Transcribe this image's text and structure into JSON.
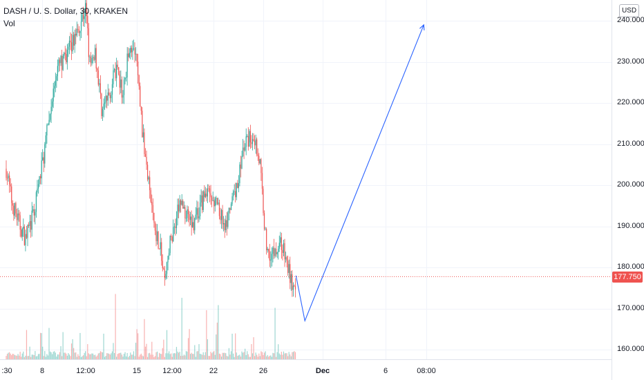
{
  "header": {
    "title": "DASH / U. S. Dollar, 30, KRAKEN",
    "volume_label": "Vol"
  },
  "currency_button": "USD",
  "price_axis": {
    "ticks": [
      "240.000",
      "230.000",
      "220.000",
      "210.000",
      "200.000",
      "190.000",
      "180.000",
      "170.000",
      "160.000"
    ],
    "current_price": "177.750"
  },
  "time_axis": {
    "ticks": [
      {
        "label": ":30",
        "bold": false
      },
      {
        "label": "8",
        "bold": false
      },
      {
        "label": "12:00",
        "bold": false
      },
      {
        "label": "15",
        "bold": false
      },
      {
        "label": "12:00",
        "bold": false
      },
      {
        "label": "22",
        "bold": false
      },
      {
        "label": "26",
        "bold": false
      },
      {
        "label": "Dec",
        "bold": true
      },
      {
        "label": "6",
        "bold": false
      },
      {
        "label": "08:00",
        "bold": false
      }
    ]
  },
  "colors": {
    "up": "#26a69a",
    "down": "#ef5350",
    "drawing": "#2962ff",
    "grid": "#f0f3fa"
  },
  "chart_data": {
    "type": "candlestick",
    "symbol": "DASH/USD",
    "interval": "30",
    "exchange": "KRAKEN",
    "ylim": [
      158,
      244
    ],
    "current_price": 177.75,
    "close_path": [
      {
        "x": "Nov 4 18:00",
        "y": 204
      },
      {
        "x": "Nov 5 06:00",
        "y": 196
      },
      {
        "x": "Nov 6 00:00",
        "y": 190
      },
      {
        "x": "Nov 6 12:00",
        "y": 187
      },
      {
        "x": "Nov 7 06:00",
        "y": 193
      },
      {
        "x": "Nov 8 00:00",
        "y": 205
      },
      {
        "x": "Nov 8 12:00",
        "y": 228
      },
      {
        "x": "Nov 9 00:00",
        "y": 234
      },
      {
        "x": "Nov 9 12:00",
        "y": 243
      },
      {
        "x": "Nov 10 00:00",
        "y": 228
      },
      {
        "x": "Nov 10 12:00",
        "y": 233
      },
      {
        "x": "Nov 11 06:00",
        "y": 218
      },
      {
        "x": "Nov 12 00:00",
        "y": 222
      },
      {
        "x": "Nov 12 18:00",
        "y": 228
      },
      {
        "x": "Nov 13 12:00",
        "y": 222
      },
      {
        "x": "Nov 14 06:00",
        "y": 235
      },
      {
        "x": "Nov 15 00:00",
        "y": 230
      },
      {
        "x": "Nov 15 18:00",
        "y": 212
      },
      {
        "x": "Nov 16 12:00",
        "y": 200
      },
      {
        "x": "Nov 17 06:00",
        "y": 190
      },
      {
        "x": "Nov 18 00:00",
        "y": 185
      },
      {
        "x": "Nov 18 12:00",
        "y": 176
      },
      {
        "x": "Nov 19 06:00",
        "y": 186
      },
      {
        "x": "Nov 20 00:00",
        "y": 196
      },
      {
        "x": "Nov 20 18:00",
        "y": 190
      },
      {
        "x": "Nov 21 12:00",
        "y": 198
      },
      {
        "x": "Nov 22 06:00",
        "y": 195
      },
      {
        "x": "Nov 23 00:00",
        "y": 190
      },
      {
        "x": "Nov 23 18:00",
        "y": 198
      },
      {
        "x": "Nov 24 12:00",
        "y": 210
      },
      {
        "x": "Nov 25 06:00",
        "y": 212
      },
      {
        "x": "Nov 25 18:00",
        "y": 205
      },
      {
        "x": "Nov 26 06:00",
        "y": 185
      },
      {
        "x": "Nov 26 18:00",
        "y": 183
      },
      {
        "x": "Nov 27 12:00",
        "y": 186
      },
      {
        "x": "Nov 28 06:00",
        "y": 178
      },
      {
        "x": "Nov 28 18:00",
        "y": 172
      }
    ],
    "projection": [
      {
        "x": "Nov 28 18:00",
        "y": 178
      },
      {
        "x": "Nov 29 12:00",
        "y": 167
      },
      {
        "x": "Dec 7 06:00",
        "y": 239
      }
    ]
  }
}
